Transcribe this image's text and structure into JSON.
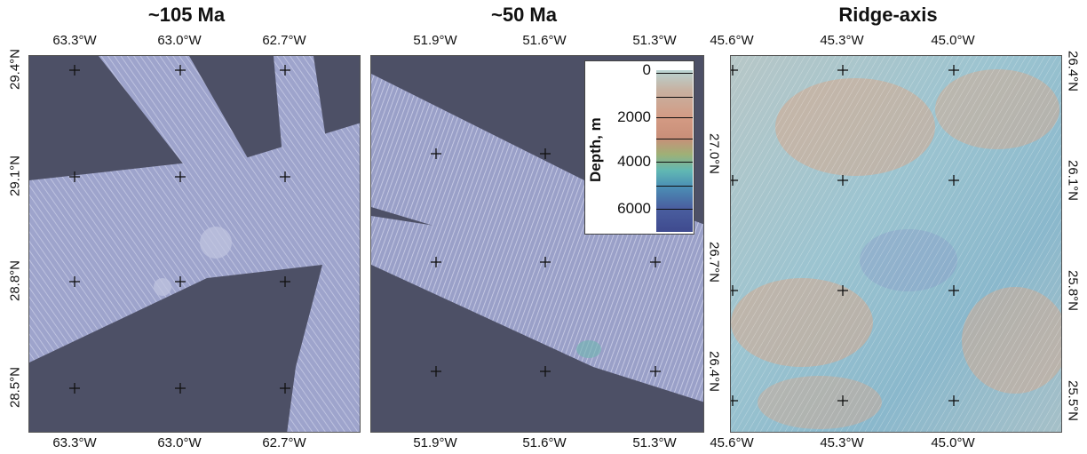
{
  "panels": [
    {
      "title": "~105 Ma",
      "lon_top": [
        "63.3°W",
        "63.0°W",
        "62.7°W"
      ],
      "lon_bottom": [
        "63.3°W",
        "63.0°W",
        "62.7°W"
      ],
      "lat_left": [
        "29.4°N",
        "29.1°N",
        "28.8°N",
        "28.5°N"
      ],
      "lat_right": []
    },
    {
      "title": "~50 Ma",
      "lon_top": [
        "51.9°W",
        "51.6°W",
        "51.3°W"
      ],
      "lon_bottom": [
        "51.9°W",
        "51.6°W",
        "51.3°W"
      ],
      "lat_left": [],
      "lat_right": [
        "27.0°N",
        "26.7°N",
        "26.4°N"
      ]
    },
    {
      "title": "Ridge-axis",
      "lon_top": [
        "45.6°W",
        "45.3°W",
        "45.0°W"
      ],
      "lon_bottom": [
        "45.6°W",
        "45.3°W",
        "45.0°W"
      ],
      "lat_left": [],
      "lat_right": [
        "26.4°N",
        "26.1°N",
        "25.8°N",
        "25.5°N"
      ]
    }
  ],
  "legend": {
    "title": "Depth, m",
    "labels": [
      "0",
      "2000",
      "4000",
      "6000"
    ],
    "colors": [
      "#b8d4d2",
      "#d39a83",
      "#61b8b3",
      "#3f4a8e"
    ]
  },
  "colors": {
    "background_bathymetry": "#4d5066",
    "survey_swath": "#9aa0c8",
    "ridge_relief": "#8fb8c8"
  }
}
